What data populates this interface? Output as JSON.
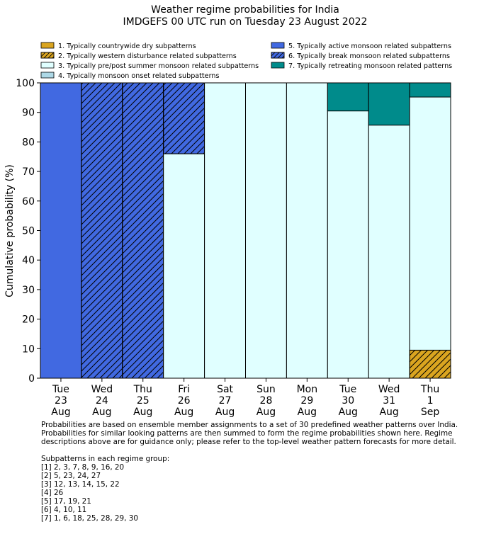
{
  "chart_data": {
    "type": "bar",
    "title": "Weather regime probabilities for India",
    "subtitle": "IMDGEFS 00 UTC run on Tuesday 23 August 2022",
    "ylabel": "Cumulative probability (%)",
    "ylim": [
      0,
      100
    ],
    "yticks": [
      "0",
      "10",
      "20",
      "30",
      "40",
      "50",
      "60",
      "70",
      "80",
      "90",
      "100"
    ],
    "categories": [
      [
        "Tue",
        "23",
        "Aug"
      ],
      [
        "Wed",
        "24",
        "Aug"
      ],
      [
        "Thu",
        "25",
        "Aug"
      ],
      [
        "Fri",
        "26",
        "Aug"
      ],
      [
        "Sat",
        "27",
        "Aug"
      ],
      [
        "Sun",
        "28",
        "Aug"
      ],
      [
        "Mon",
        "29",
        "Aug"
      ],
      [
        "Tue",
        "30",
        "Aug"
      ],
      [
        "Wed",
        "31",
        "Aug"
      ],
      [
        "Thu",
        "1",
        "Sep"
      ]
    ],
    "stacked": true,
    "legend_placement": "top",
    "series": [
      {
        "name": "1. Typically countrywide dry subpatterns",
        "color": "#daa520",
        "hatch": false,
        "values": [
          0,
          0,
          0,
          0,
          0,
          0,
          0,
          0,
          0,
          0
        ]
      },
      {
        "name": "2. Typically western disturbance related subpatterns",
        "color": "#daa520",
        "hatch": true,
        "values": [
          0,
          0,
          0,
          0,
          0,
          0,
          0,
          0,
          0,
          9.5
        ]
      },
      {
        "name": "3. Typically pre/post summer monsoon related subpatterns",
        "color": "#e0ffff",
        "hatch": false,
        "values": [
          0,
          0,
          0,
          76,
          100,
          100,
          100,
          90.5,
          85.7,
          85.7
        ]
      },
      {
        "name": "4. Typically monsoon onset related subpatterns",
        "color": "#add8e6",
        "hatch": false,
        "values": [
          0,
          0,
          0,
          0,
          0,
          0,
          0,
          0,
          0,
          0
        ]
      },
      {
        "name": "5. Typically active monsoon related subpatterns",
        "color": "#4169e1",
        "hatch": false,
        "values": [
          100,
          0,
          0,
          0,
          0,
          0,
          0,
          0,
          0,
          0
        ]
      },
      {
        "name": "6. Typically break monsoon related subpatterns",
        "color": "#4169e1",
        "hatch": true,
        "values": [
          0,
          100,
          100,
          24,
          0,
          0,
          0,
          0,
          0,
          0
        ]
      },
      {
        "name": "7. Typically retreating monsoon related patterns",
        "color": "#008b8b",
        "hatch": false,
        "values": [
          0,
          0,
          0,
          0,
          0,
          0,
          0,
          9.5,
          14.3,
          4.8
        ]
      }
    ]
  },
  "notes": {
    "line1": "Probabilities are based on ensemble member assignments to a set of 30 predefined weather patterns over India.",
    "line2": "Probabilities for similar looking patterns are then summed to form the regime probabilities shown here. Regime",
    "line3": "descriptions above are for guidance only; please refer to the top-level weather pattern forecasts for more detail.",
    "groups_heading": "Subpatterns in each regime group:",
    "groups": [
      "[1] 2, 3, 7, 8, 9, 16, 20",
      "[2] 5, 23, 24, 27",
      "[3] 12, 13, 14, 15, 22",
      "[4] 26",
      "[5] 17, 19, 21",
      "[6] 4, 10, 11",
      "[7] 1, 6, 18, 25, 28, 29, 30"
    ]
  }
}
